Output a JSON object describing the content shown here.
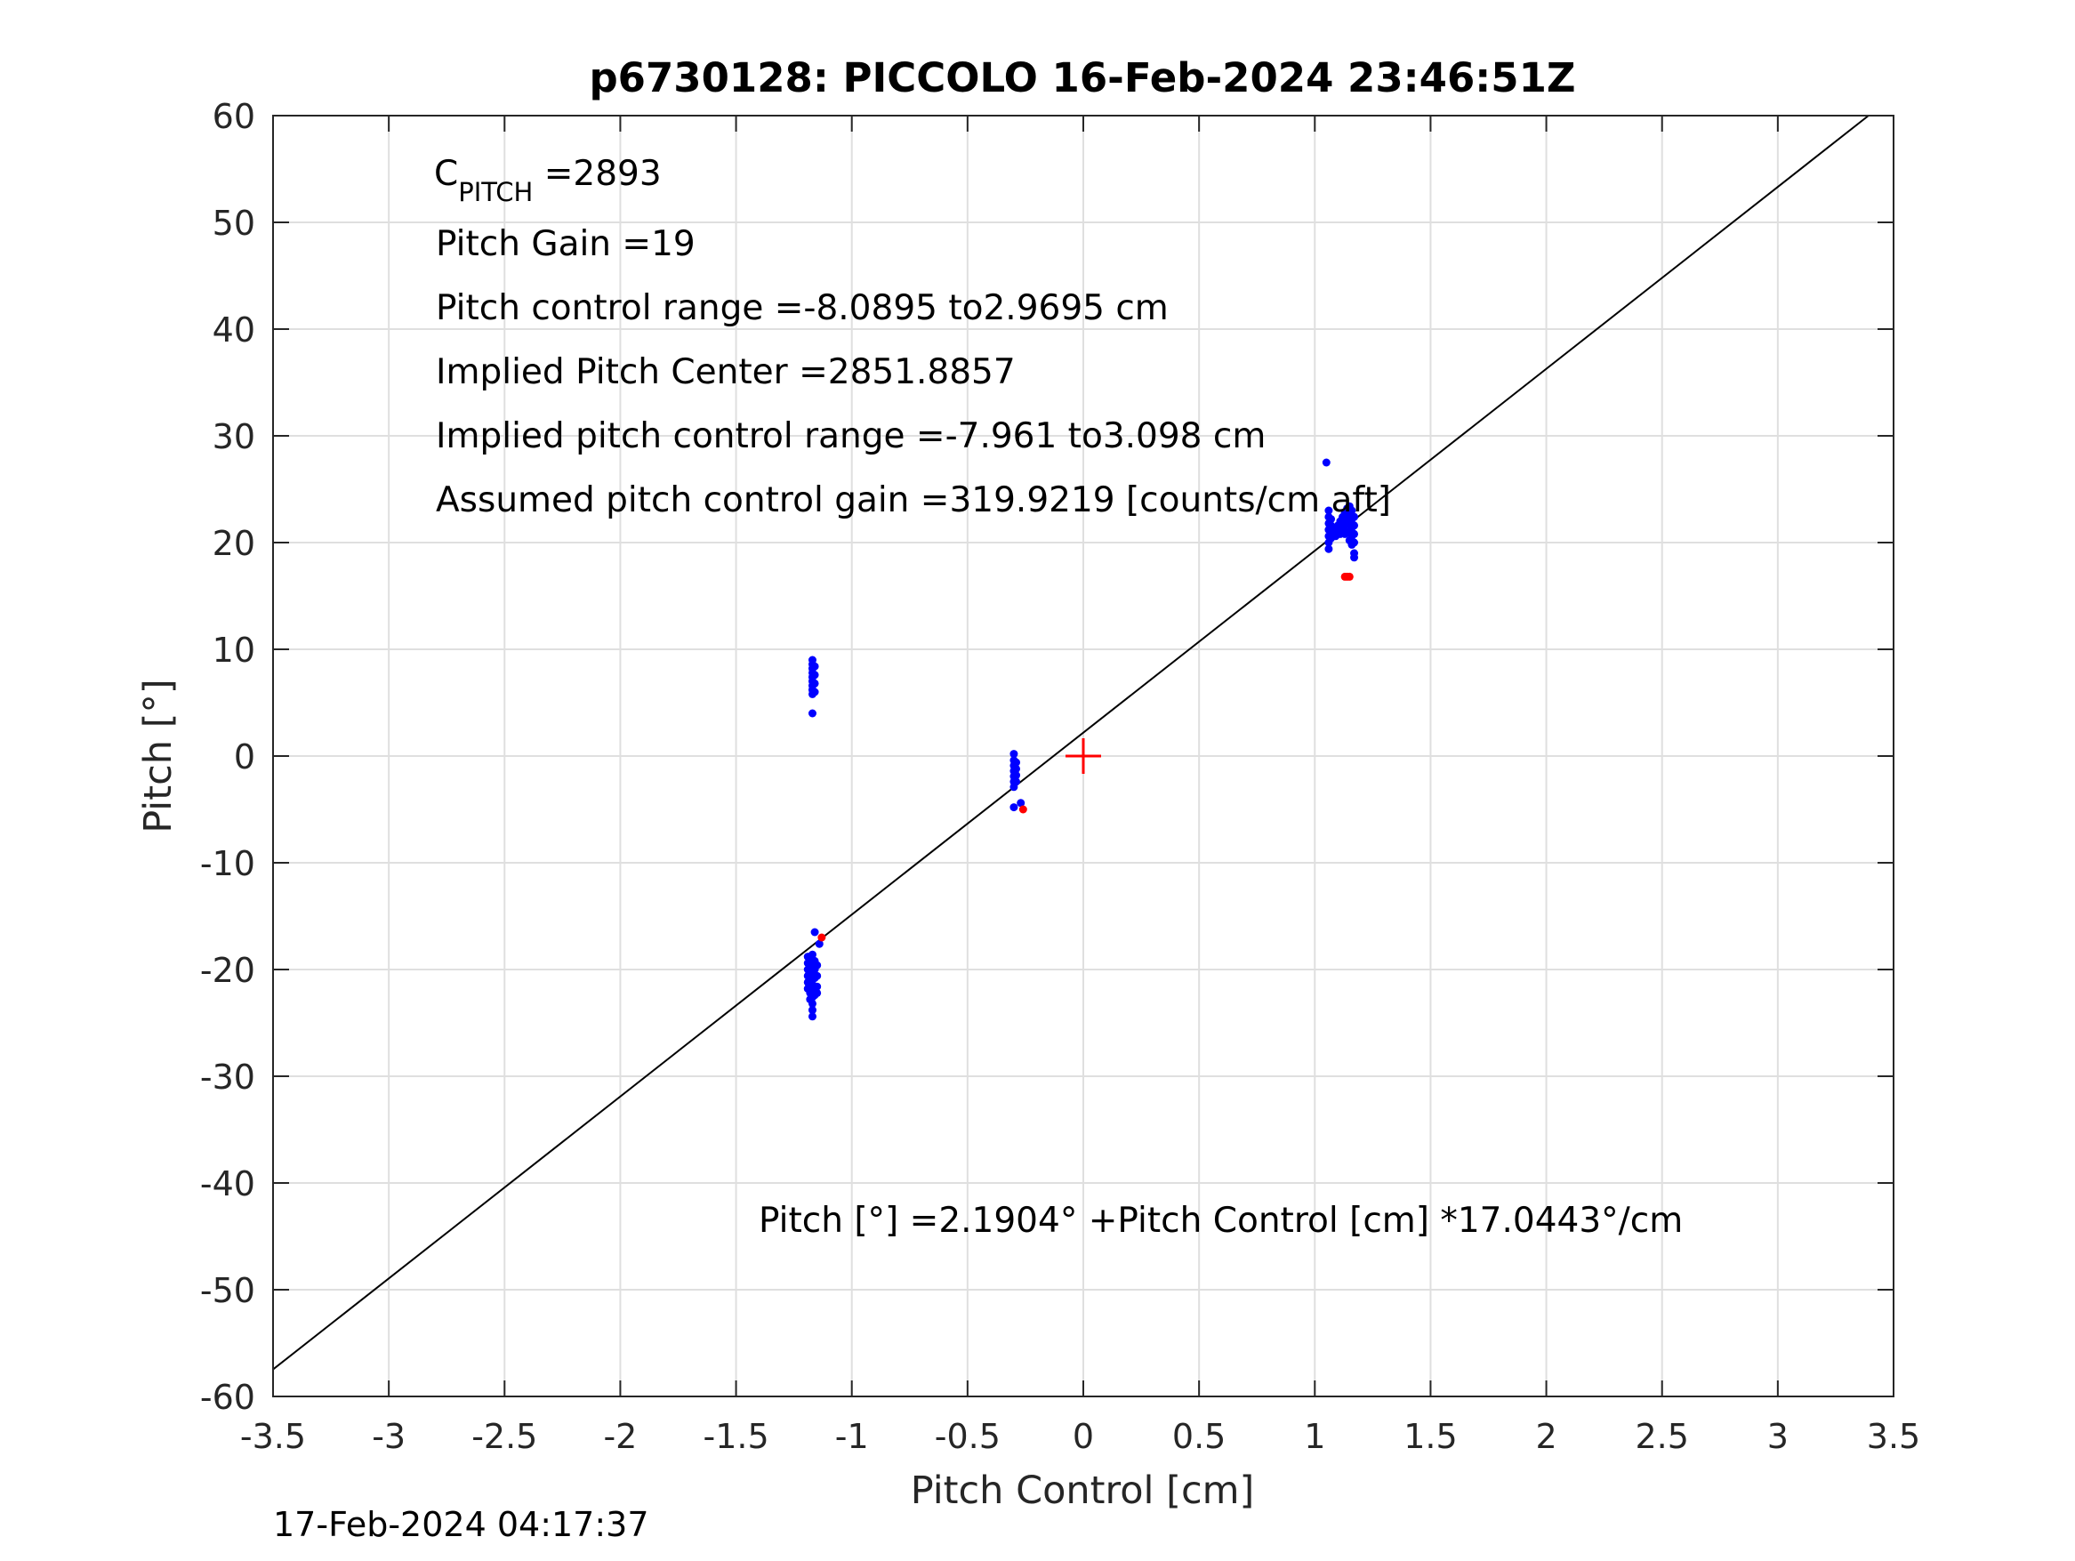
{
  "chart_data": {
    "type": "scatter",
    "title": "p6730128: PICCOLO 16-Feb-2024 23:46:51Z",
    "xlabel": "Pitch Control [cm]",
    "ylabel": "Pitch [°]",
    "xlim": [
      -3.5,
      3.5
    ],
    "ylim": [
      -60,
      60
    ],
    "grid": true,
    "x_ticks": [
      -3.5,
      -3,
      -2.5,
      -2,
      -1.5,
      -1,
      -0.5,
      0,
      0.5,
      1,
      1.5,
      2,
      2.5,
      3,
      3.5
    ],
    "x_tick_labels": [
      "-3.5",
      "-3",
      "-2.5",
      "-2",
      "-1.5",
      "-1",
      "-0.5",
      "0",
      "0.5",
      "1",
      "1.5",
      "2",
      "2.5",
      "3",
      "3.5"
    ],
    "y_ticks": [
      60,
      50,
      40,
      30,
      20,
      10,
      0,
      -10,
      -20,
      -30,
      -40,
      -50,
      -60
    ],
    "y_tick_labels": [
      "60",
      "50",
      "40",
      "30",
      "20",
      "10",
      "0",
      "-10",
      "-20",
      "-30",
      "-40",
      "-50",
      "-60"
    ],
    "fit_line": {
      "intercept": 2.1904,
      "slope": 17.0443,
      "color": "#000000"
    },
    "center_marker": {
      "x": 0,
      "y": 0,
      "color": "#ff0000",
      "symbol": "+"
    },
    "series": [
      {
        "name": "blue points",
        "color": "#0000ff",
        "points": [
          [
            -1.17,
            4.0
          ],
          [
            -1.17,
            5.8
          ],
          [
            -1.17,
            6.2
          ],
          [
            -1.17,
            6.6
          ],
          [
            -1.17,
            7.0
          ],
          [
            -1.17,
            7.4
          ],
          [
            -1.17,
            7.8
          ],
          [
            -1.17,
            8.2
          ],
          [
            -1.17,
            8.6
          ],
          [
            -1.17,
            9.0
          ],
          [
            -1.16,
            6.0
          ],
          [
            -1.16,
            6.8
          ],
          [
            -1.16,
            7.6
          ],
          [
            -1.16,
            8.4
          ],
          [
            -1.16,
            -16.5
          ],
          [
            -1.14,
            -17.6
          ],
          [
            -1.19,
            -18.8
          ],
          [
            -1.19,
            -19.4
          ],
          [
            -1.19,
            -20.0
          ],
          [
            -1.19,
            -20.6
          ],
          [
            -1.19,
            -21.2
          ],
          [
            -1.19,
            -21.8
          ],
          [
            -1.18,
            -19.0
          ],
          [
            -1.18,
            -19.8
          ],
          [
            -1.18,
            -20.4
          ],
          [
            -1.18,
            -21.0
          ],
          [
            -1.18,
            -21.6
          ],
          [
            -1.18,
            -22.2
          ],
          [
            -1.18,
            -22.8
          ],
          [
            -1.17,
            -18.6
          ],
          [
            -1.17,
            -19.6
          ],
          [
            -1.17,
            -20.2
          ],
          [
            -1.17,
            -20.8
          ],
          [
            -1.17,
            -21.4
          ],
          [
            -1.17,
            -22.0
          ],
          [
            -1.17,
            -22.6
          ],
          [
            -1.17,
            -23.2
          ],
          [
            -1.17,
            -23.8
          ],
          [
            -1.17,
            -24.4
          ],
          [
            -1.16,
            -19.2
          ],
          [
            -1.16,
            -20.0
          ],
          [
            -1.16,
            -20.8
          ],
          [
            -1.16,
            -21.6
          ],
          [
            -1.16,
            -22.4
          ],
          [
            -1.15,
            -19.6
          ],
          [
            -1.15,
            -20.6
          ],
          [
            -1.15,
            -21.6
          ],
          [
            -1.15,
            -22.2
          ],
          [
            -0.3,
            0.2
          ],
          [
            -0.3,
            -0.4
          ],
          [
            -0.3,
            -0.9
          ],
          [
            -0.3,
            -1.4
          ],
          [
            -0.3,
            -1.9
          ],
          [
            -0.3,
            -2.4
          ],
          [
            -0.3,
            -2.9
          ],
          [
            -0.29,
            -0.6
          ],
          [
            -0.29,
            -1.2
          ],
          [
            -0.29,
            -1.8
          ],
          [
            -0.29,
            -2.4
          ],
          [
            -0.3,
            -4.8
          ],
          [
            -0.27,
            -4.4
          ],
          [
            1.05,
            27.5
          ],
          [
            1.06,
            19.4
          ],
          [
            1.06,
            20.0
          ],
          [
            1.06,
            20.6
          ],
          [
            1.06,
            21.2
          ],
          [
            1.06,
            21.8
          ],
          [
            1.06,
            22.4
          ],
          [
            1.06,
            23.0
          ],
          [
            1.07,
            20.4
          ],
          [
            1.07,
            21.0
          ],
          [
            1.07,
            21.6
          ],
          [
            1.07,
            22.2
          ],
          [
            1.08,
            20.8
          ],
          [
            1.08,
            21.4
          ],
          [
            1.09,
            20.6
          ],
          [
            1.09,
            21.2
          ],
          [
            1.1,
            21.0
          ],
          [
            1.1,
            21.6
          ],
          [
            1.11,
            20.8
          ],
          [
            1.11,
            21.4
          ],
          [
            1.11,
            22.0
          ],
          [
            1.12,
            21.2
          ],
          [
            1.12,
            21.8
          ],
          [
            1.12,
            22.4
          ],
          [
            1.13,
            20.8
          ],
          [
            1.13,
            21.6
          ],
          [
            1.13,
            22.2
          ],
          [
            1.13,
            22.8
          ],
          [
            1.14,
            21.0
          ],
          [
            1.14,
            21.8
          ],
          [
            1.14,
            22.6
          ],
          [
            1.14,
            23.2
          ],
          [
            1.15,
            20.2
          ],
          [
            1.15,
            21.0
          ],
          [
            1.15,
            21.8
          ],
          [
            1.15,
            22.6
          ],
          [
            1.15,
            23.4
          ],
          [
            1.16,
            19.8
          ],
          [
            1.16,
            20.6
          ],
          [
            1.16,
            21.4
          ],
          [
            1.16,
            22.2
          ],
          [
            1.16,
            23.0
          ],
          [
            1.17,
            18.6
          ],
          [
            1.17,
            19.0
          ],
          [
            1.17,
            20.0
          ],
          [
            1.17,
            20.8
          ],
          [
            1.17,
            21.6
          ],
          [
            1.17,
            22.4
          ]
        ]
      },
      {
        "name": "red points",
        "color": "#ff0000",
        "points": [
          [
            -1.13,
            -17.0
          ],
          [
            -0.26,
            -5.0
          ],
          [
            1.13,
            16.8
          ],
          [
            1.14,
            16.8
          ],
          [
            1.15,
            16.8
          ]
        ]
      }
    ],
    "annotations": {
      "c_pitch": {
        "main": "C",
        "sub": "PITCH",
        "rest": " =2893"
      },
      "lines": [
        "Pitch Gain =19",
        "Pitch control range =-8.0895 to2.9695 cm",
        "Implied Pitch Center =2851.8857",
        "Implied pitch control range =-7.961 to3.098 cm",
        "Assumed pitch control gain =319.9219 [counts/cm aft]"
      ],
      "equation": "Pitch [°] =2.1904° +Pitch Control [cm] *17.0443°/cm"
    },
    "footer_timestamp": "17-Feb-2024 04:17:37"
  }
}
